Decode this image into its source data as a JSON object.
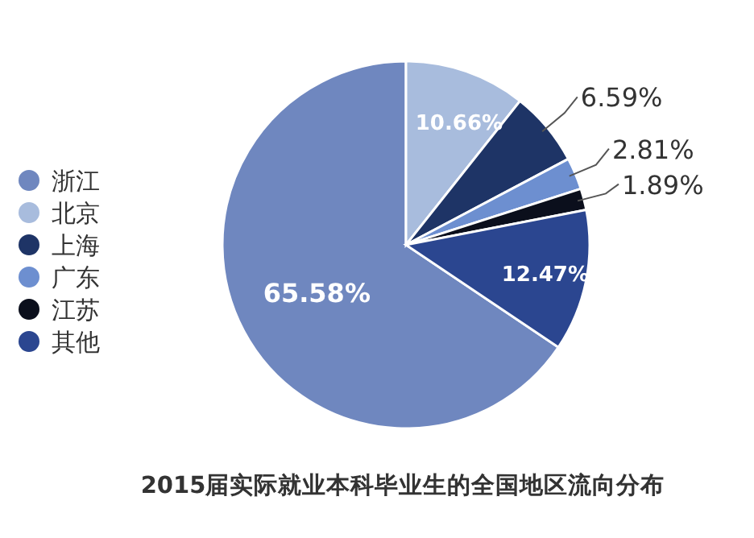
{
  "chart_data": {
    "type": "pie",
    "title": "2015届实际就业本科毕业生的全国地区流向分布",
    "categories": [
      "浙江",
      "北京",
      "上海",
      "广东",
      "江苏",
      "其他"
    ],
    "values": [
      65.58,
      10.66,
      6.59,
      2.81,
      1.89,
      12.47
    ],
    "value_labels": [
      "65.58%",
      "10.66%",
      "6.59%",
      "2.81%",
      "1.89%",
      "12.47%"
    ],
    "colors": [
      "#6f87bf",
      "#a8bcdd",
      "#1e3466",
      "#6d8fd0",
      "#0b0f1c",
      "#2b4690"
    ],
    "legend": "left"
  }
}
